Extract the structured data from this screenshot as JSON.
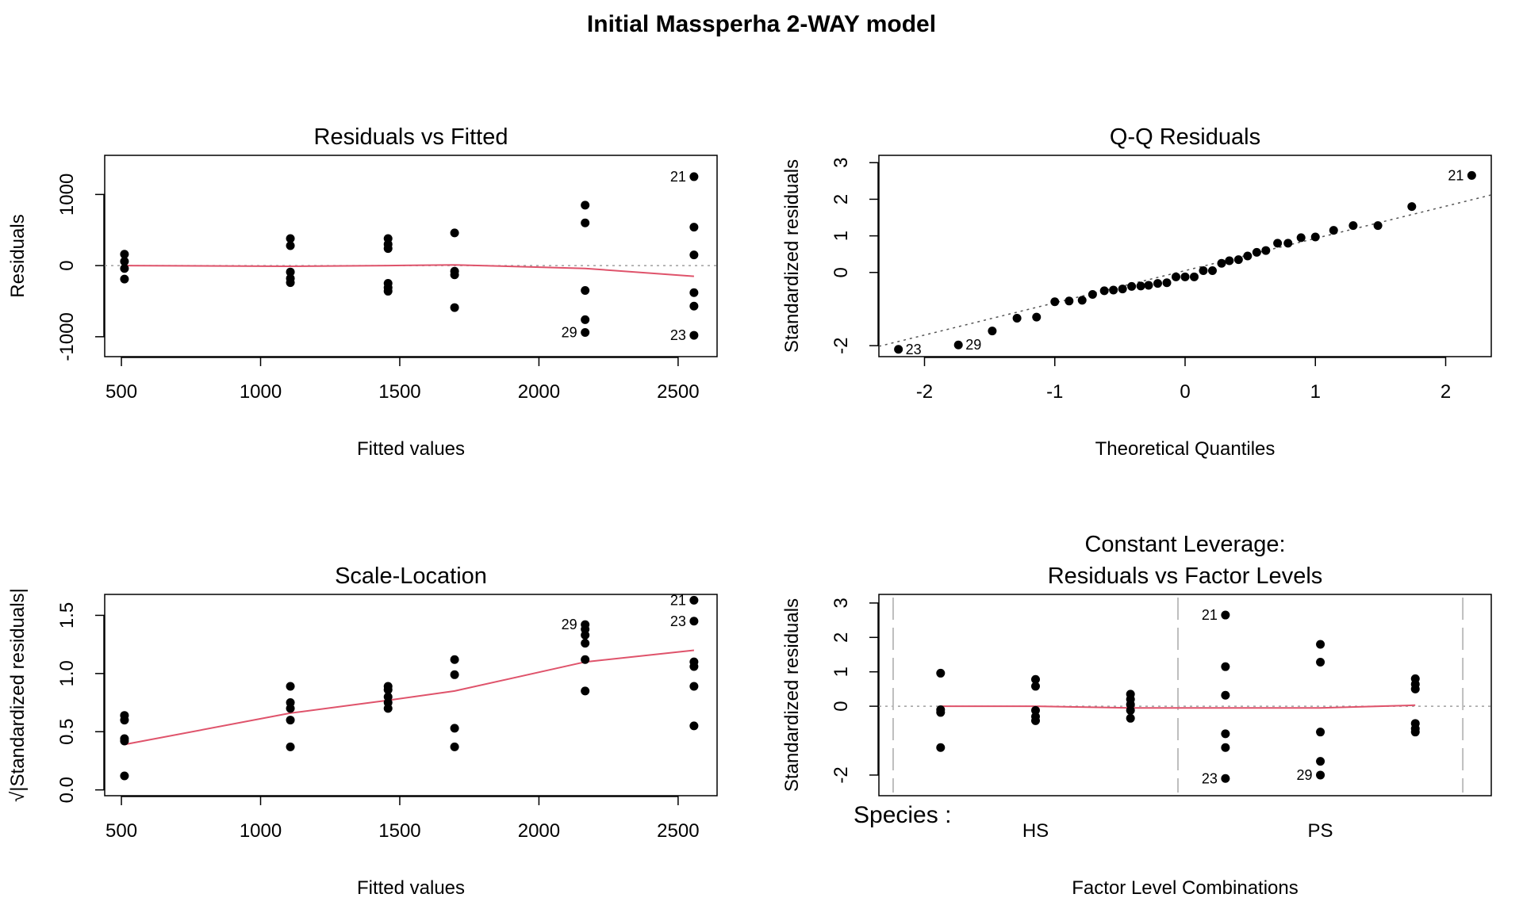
{
  "title": "Initial Massperha 2-WAY model",
  "colors": {
    "points": "#000000",
    "smooth": "#DF536B",
    "reference": "#9E9E9E",
    "qqline": "#555555",
    "divider": "#BEBEBE"
  },
  "chart_data": [
    {
      "type": "scatter",
      "title": "Residuals vs Fitted",
      "xlabel": "Fitted values",
      "ylabel": "Residuals",
      "xlim": [
        440,
        2640
      ],
      "ylim": [
        -1280,
        1550
      ],
      "xticks": [
        500,
        1000,
        1500,
        2000,
        2500
      ],
      "yticks": [
        -1000,
        0,
        1000
      ],
      "hline": 0,
      "points": [
        [
          511,
          160
        ],
        [
          511,
          60
        ],
        [
          511,
          -40
        ],
        [
          511,
          -190
        ],
        [
          1107,
          380
        ],
        [
          1107,
          280
        ],
        [
          1107,
          -90
        ],
        [
          1107,
          -180
        ],
        [
          1107,
          -240
        ],
        [
          1458,
          380
        ],
        [
          1458,
          300
        ],
        [
          1458,
          240
        ],
        [
          1458,
          -250
        ],
        [
          1458,
          -310
        ],
        [
          1458,
          -360
        ],
        [
          1697,
          460
        ],
        [
          1697,
          -80
        ],
        [
          1697,
          -130
        ],
        [
          1697,
          -590
        ],
        [
          2166,
          850
        ],
        [
          2166,
          600
        ],
        [
          2166,
          -350
        ],
        [
          2166,
          -760
        ],
        [
          2166,
          -940
        ],
        [
          2557,
          1250
        ],
        [
          2557,
          540
        ],
        [
          2557,
          150
        ],
        [
          2557,
          -380
        ],
        [
          2557,
          -570
        ],
        [
          2557,
          -980
        ]
      ],
      "smooth": [
        [
          511,
          0
        ],
        [
          1107,
          -10
        ],
        [
          1458,
          0
        ],
        [
          1697,
          10
        ],
        [
          2166,
          -40
        ],
        [
          2557,
          -150
        ]
      ],
      "labels": [
        {
          "text": "21",
          "x": 2557,
          "y": 1250
        },
        {
          "text": "29",
          "x": 2166,
          "y": -940
        },
        {
          "text": "23",
          "x": 2557,
          "y": -980
        }
      ]
    },
    {
      "type": "scatter",
      "title": "Q-Q Residuals",
      "xlabel": "Theoretical Quantiles",
      "ylabel": "Standardized residuals",
      "xlim": [
        -2.35,
        2.35
      ],
      "ylim": [
        -2.3,
        3.2
      ],
      "xticks": [
        -2,
        -1,
        0,
        1,
        2
      ],
      "yticks": [
        -2,
        0,
        1,
        2,
        3
      ],
      "qqline": {
        "intercept": 0.05,
        "slope": 0.88
      },
      "points": [
        [
          -2.2,
          -2.1
        ],
        [
          -1.74,
          -1.98
        ],
        [
          -1.48,
          -1.6
        ],
        [
          -1.29,
          -1.25
        ],
        [
          -1.14,
          -1.22
        ],
        [
          -1.0,
          -0.8
        ],
        [
          -0.89,
          -0.78
        ],
        [
          -0.79,
          -0.76
        ],
        [
          -0.71,
          -0.6
        ],
        [
          -0.62,
          -0.5
        ],
        [
          -0.55,
          -0.48
        ],
        [
          -0.48,
          -0.45
        ],
        [
          -0.41,
          -0.38
        ],
        [
          -0.34,
          -0.37
        ],
        [
          -0.28,
          -0.35
        ],
        [
          -0.21,
          -0.3
        ],
        [
          -0.14,
          -0.28
        ],
        [
          -0.07,
          -0.12
        ],
        [
          0.0,
          -0.12
        ],
        [
          0.07,
          -0.12
        ],
        [
          0.14,
          0.05
        ],
        [
          0.21,
          0.05
        ],
        [
          0.28,
          0.25
        ],
        [
          0.34,
          0.32
        ],
        [
          0.41,
          0.35
        ],
        [
          0.48,
          0.45
        ],
        [
          0.55,
          0.55
        ],
        [
          0.62,
          0.6
        ],
        [
          0.71,
          0.8
        ],
        [
          0.79,
          0.8
        ],
        [
          0.89,
          0.95
        ],
        [
          1.0,
          0.97
        ],
        [
          1.14,
          1.15
        ],
        [
          1.29,
          1.28
        ],
        [
          1.48,
          1.28
        ],
        [
          1.74,
          1.8
        ],
        [
          2.2,
          2.65
        ]
      ],
      "labels": [
        {
          "text": "21",
          "x": 2.2,
          "y": 2.65
        },
        {
          "text": "23",
          "x": -2.2,
          "y": -2.1
        },
        {
          "text": "29",
          "x": -1.74,
          "y": -1.98
        }
      ]
    },
    {
      "type": "scatter",
      "title": "Scale-Location",
      "xlabel": "Fitted values",
      "ylabel": "√|Standardized residuals|",
      "xlim": [
        440,
        2640
      ],
      "ylim": [
        -0.05,
        1.68
      ],
      "xticks": [
        500,
        1000,
        1500,
        2000,
        2500
      ],
      "yticks": [
        0.0,
        0.5,
        1.0,
        1.5
      ],
      "points": [
        [
          511,
          0.64
        ],
        [
          511,
          0.6
        ],
        [
          511,
          0.44
        ],
        [
          511,
          0.42
        ],
        [
          511,
          0.12
        ],
        [
          1107,
          0.89
        ],
        [
          1107,
          0.75
        ],
        [
          1107,
          0.7
        ],
        [
          1107,
          0.6
        ],
        [
          1107,
          0.37
        ],
        [
          1458,
          0.89
        ],
        [
          1458,
          0.86
        ],
        [
          1458,
          0.8
        ],
        [
          1458,
          0.75
        ],
        [
          1458,
          0.7
        ],
        [
          1697,
          1.12
        ],
        [
          1697,
          0.99
        ],
        [
          1697,
          0.53
        ],
        [
          1697,
          0.37
        ],
        [
          2166,
          1.42
        ],
        [
          2166,
          1.38
        ],
        [
          2166,
          1.33
        ],
        [
          2166,
          1.26
        ],
        [
          2166,
          1.12
        ],
        [
          2166,
          0.85
        ],
        [
          2557,
          1.63
        ],
        [
          2557,
          1.45
        ],
        [
          2557,
          1.1
        ],
        [
          2557,
          1.06
        ],
        [
          2557,
          0.89
        ],
        [
          2557,
          0.55
        ]
      ],
      "smooth": [
        [
          511,
          0.39
        ],
        [
          1107,
          0.66
        ],
        [
          1458,
          0.77
        ],
        [
          1697,
          0.85
        ],
        [
          2166,
          1.1
        ],
        [
          2557,
          1.2
        ]
      ],
      "labels": [
        {
          "text": "21",
          "x": 2557,
          "y": 1.63
        },
        {
          "text": "23",
          "x": 2557,
          "y": 1.45
        },
        {
          "text": "29",
          "x": 2166,
          "y": 1.42
        }
      ]
    },
    {
      "type": "scatter",
      "title_line1": "Constant Leverage:",
      "title_line2": "Residuals vs Factor Levels",
      "xlabel": "Factor Level Combinations",
      "ylabel": "Standardized residuals",
      "factor_label": "Species :",
      "xlim": [
        -0.15,
        6.3
      ],
      "ylim": [
        -2.6,
        3.25
      ],
      "yticks": [
        -2,
        0,
        1,
        2,
        3
      ],
      "group_labels": [
        {
          "text": "HS",
          "x": 1.5
        },
        {
          "text": "PS",
          "x": 4.5
        }
      ],
      "dividers": [
        0.0,
        3.0,
        6.0
      ],
      "hline": 0,
      "points": [
        [
          0.5,
          0.96
        ],
        [
          0.5,
          -0.1
        ],
        [
          0.5,
          -0.18
        ],
        [
          0.5,
          -1.2
        ],
        [
          1.5,
          0.78
        ],
        [
          1.5,
          0.58
        ],
        [
          1.5,
          -0.12
        ],
        [
          1.5,
          -0.3
        ],
        [
          1.5,
          -0.42
        ],
        [
          2.5,
          0.35
        ],
        [
          2.5,
          0.2
        ],
        [
          2.5,
          0.05
        ],
        [
          2.5,
          -0.12
        ],
        [
          2.5,
          -0.35
        ],
        [
          3.5,
          2.65
        ],
        [
          3.5,
          1.15
        ],
        [
          3.5,
          0.32
        ],
        [
          3.5,
          -0.8
        ],
        [
          3.5,
          -1.2
        ],
        [
          3.5,
          -2.1
        ],
        [
          4.5,
          1.8
        ],
        [
          4.5,
          1.28
        ],
        [
          4.5,
          -0.75
        ],
        [
          4.5,
          -1.6
        ],
        [
          4.5,
          -2.0
        ],
        [
          5.5,
          0.8
        ],
        [
          5.5,
          0.64
        ],
        [
          5.5,
          0.5
        ],
        [
          5.5,
          -0.5
        ],
        [
          5.5,
          -0.65
        ],
        [
          5.5,
          -0.75
        ]
      ],
      "smooth": [
        [
          0.5,
          0.0
        ],
        [
          1.5,
          0.0
        ],
        [
          2.5,
          -0.05
        ],
        [
          3.5,
          -0.05
        ],
        [
          4.5,
          -0.05
        ],
        [
          5.5,
          0.03
        ]
      ],
      "labels": [
        {
          "text": "21",
          "x": 3.5,
          "y": 2.65
        },
        {
          "text": "23",
          "x": 3.5,
          "y": -2.1
        },
        {
          "text": "29",
          "x": 4.5,
          "y": -2.0
        }
      ]
    }
  ]
}
